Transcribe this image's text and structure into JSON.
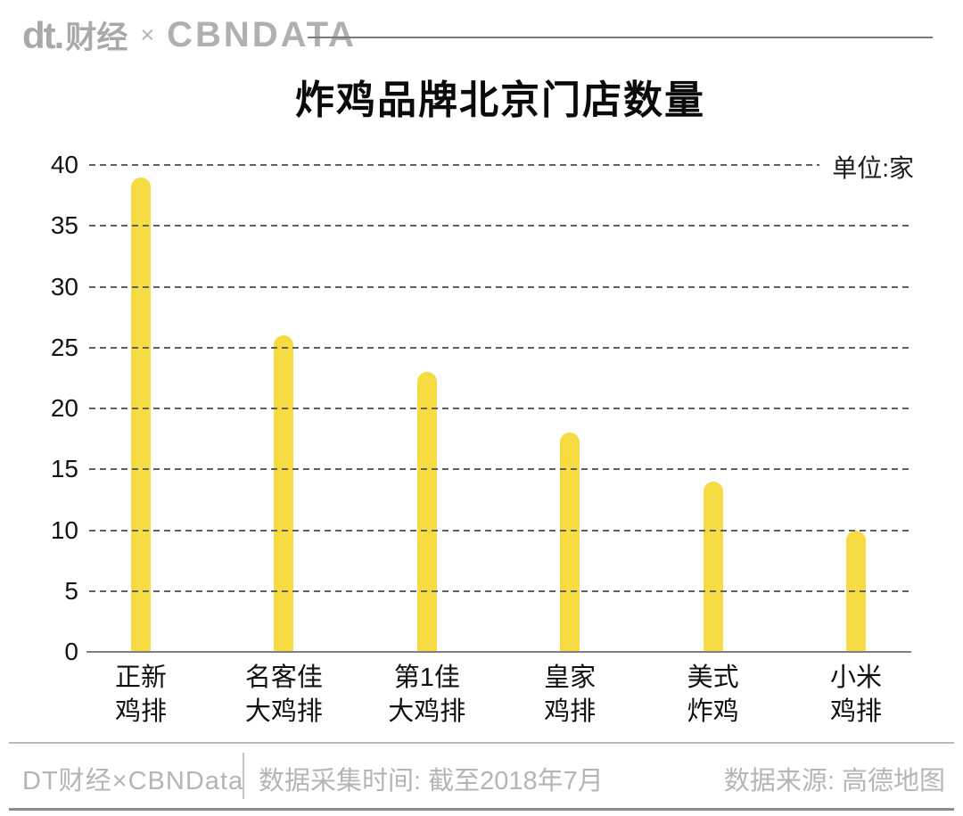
{
  "header": {
    "logo_dt": "dt.",
    "logo_cn": "财经",
    "separator": "×",
    "logo_partner": "CBNDATA"
  },
  "chart_data": {
    "type": "bar",
    "title": "炸鸡品牌北京门店数量",
    "unit_label": "单位:家",
    "categories": [
      "正新\n鸡排",
      "名客佳\n大鸡排",
      "第1佳\n大鸡排",
      "皇家\n鸡排",
      "美式\n炸鸡",
      "小米\n鸡排"
    ],
    "values": [
      39,
      26,
      23,
      18,
      14,
      10
    ],
    "xlabel": "",
    "ylabel": "",
    "ylim": [
      0,
      40
    ],
    "yticks": [
      40,
      35,
      30,
      25,
      20,
      15,
      10,
      5,
      0
    ],
    "grid": "horizontal-dashed",
    "legend": "none",
    "bar_color": "#F7DB43"
  },
  "footer": {
    "credit": "DT财经×CBNData",
    "collection_time": "数据采集时间: 截至2018年7月",
    "source": "数据来源: 高德地图"
  },
  "colors": {
    "bar": "#F7DB43",
    "grid": "#606060",
    "axis": "#808080",
    "brand_gray": "#ABABAB",
    "footer_text": "#B5B5B5",
    "title": "#0A0A0A",
    "background": "#FFFFFF"
  }
}
